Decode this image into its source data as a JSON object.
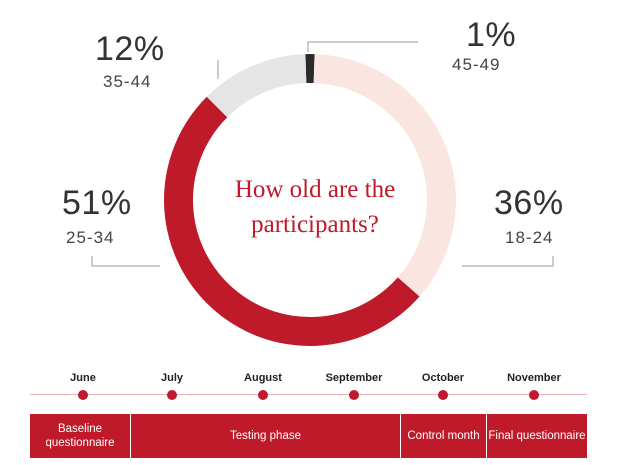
{
  "chart_data": {
    "type": "pie",
    "title": "How old are the participants?",
    "slices": [
      {
        "label": "45-49",
        "percent": 1,
        "value_label": "1%",
        "color": "#2b2b2b"
      },
      {
        "label": "18-24",
        "percent": 36,
        "value_label": "36%",
        "color": "#fbe5e0"
      },
      {
        "label": "25-34",
        "percent": 51,
        "value_label": "51%",
        "color": "#be1a2a"
      },
      {
        "label": "35-44",
        "percent": 12,
        "value_label": "12%",
        "color": "#e5e5e5"
      }
    ]
  },
  "timeline": {
    "months": [
      "June",
      "July",
      "August",
      "September",
      "October",
      "November"
    ],
    "phases": [
      "Baseline questionnaire",
      "Testing phase",
      "Control month",
      "Final questionnaire"
    ]
  },
  "colors": {
    "accent": "#be1a2a",
    "leader": "#999999"
  }
}
